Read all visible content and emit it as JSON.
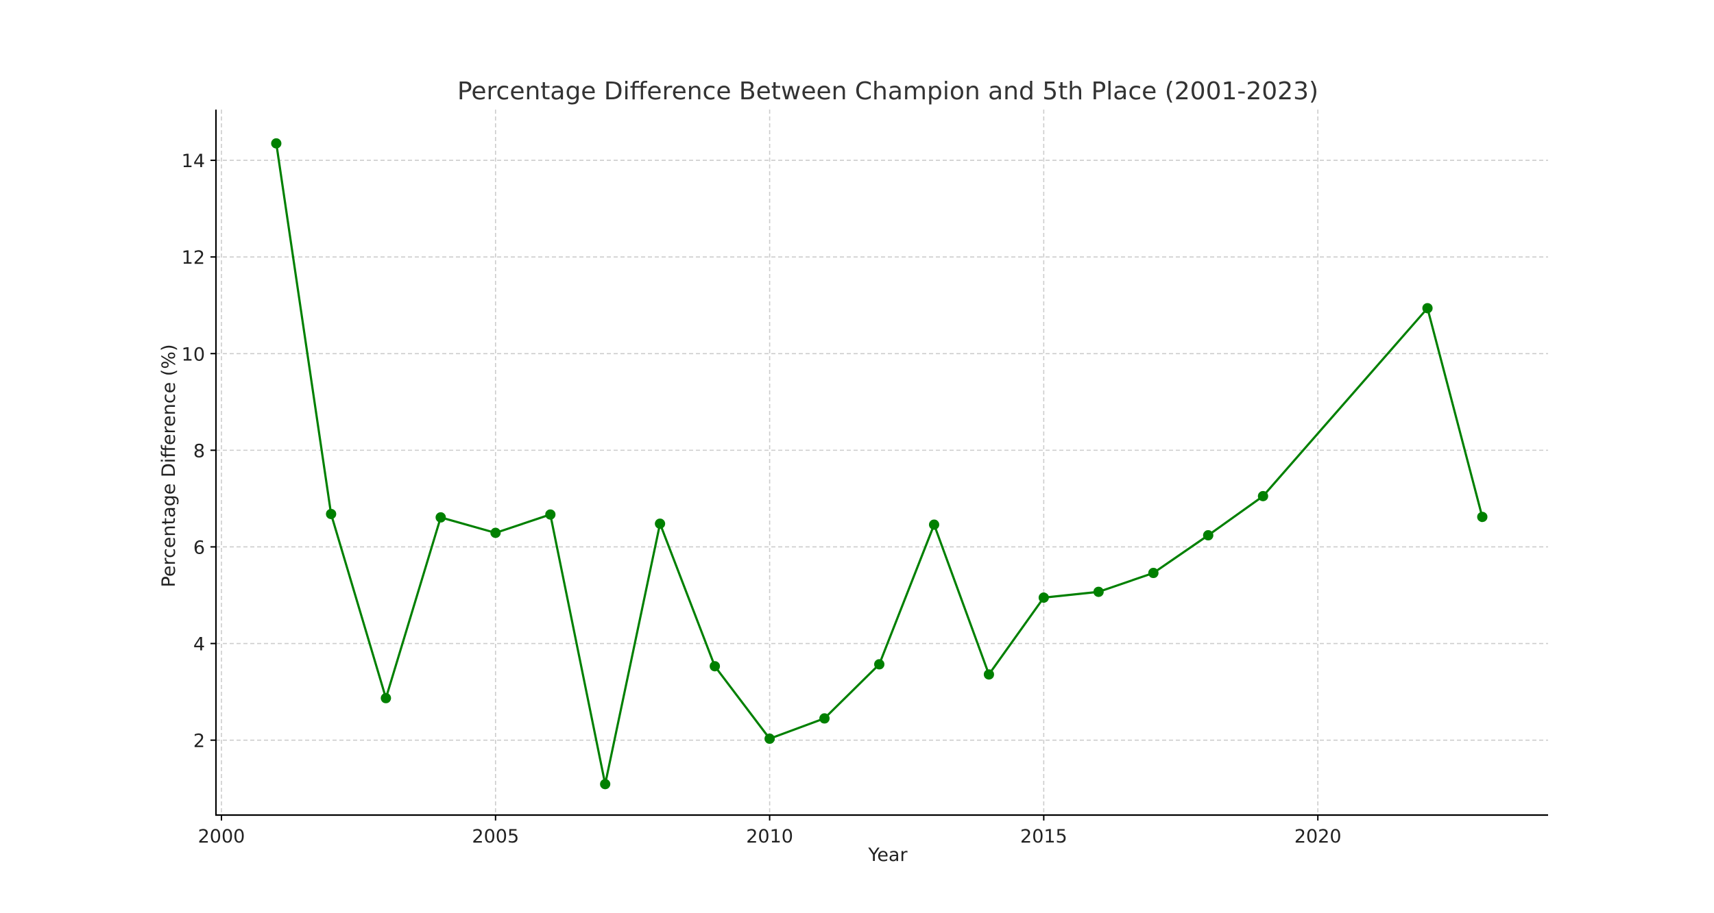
{
  "chart_data": {
    "type": "line",
    "title": "Percentage Difference Between Champion and 5th Place (2001-2023)",
    "xlabel": "Year",
    "ylabel": "Percentage Difference (%)",
    "xlim": [
      1999.9,
      2024.2
    ],
    "ylim": [
      0.45,
      15.05
    ],
    "xticks": [
      2000,
      2005,
      2010,
      2015,
      2020
    ],
    "yticks": [
      2,
      4,
      6,
      8,
      10,
      12,
      14
    ],
    "grid": true,
    "series": [
      {
        "name": "Percentage Difference",
        "color": "#008000",
        "x": [
          2001,
          2002,
          2003,
          2004,
          2005,
          2006,
          2007,
          2008,
          2009,
          2010,
          2011,
          2012,
          2013,
          2014,
          2015,
          2016,
          2017,
          2018,
          2019,
          2022,
          2023
        ],
        "y": [
          14.35,
          6.68,
          2.87,
          6.61,
          6.29,
          6.67,
          1.09,
          6.48,
          3.53,
          2.03,
          2.45,
          3.57,
          6.46,
          3.36,
          4.95,
          5.07,
          5.46,
          6.24,
          7.05,
          10.94,
          6.62
        ]
      }
    ]
  }
}
